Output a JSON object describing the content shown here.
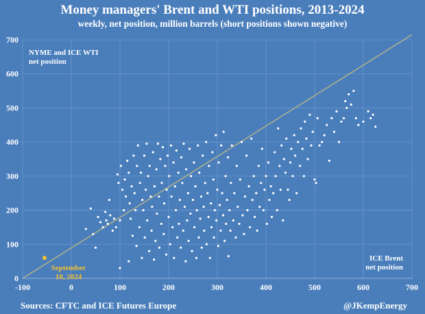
{
  "chart_data": {
    "type": "scatter",
    "title": "Money managers' Brent and WTI positions, 2013-2024",
    "subtitle": "weekly, net position, million barrels (short positions shown negative)",
    "xlabel": "ICE Brent net position",
    "ylabel": "NYME and ICE WTI net position",
    "xlim": [
      -100,
      700
    ],
    "ylim": [
      0,
      700
    ],
    "xticks": [
      -100,
      0,
      100,
      200,
      300,
      400,
      500,
      600,
      700
    ],
    "yticks": [
      0,
      100,
      200,
      300,
      400,
      500,
      600,
      700
    ],
    "grid": true,
    "trend_line": [
      [
        -100,
        0
      ],
      [
        700,
        715
      ]
    ],
    "highlight": {
      "label": "September 10, 2024",
      "x": -55,
      "y": 60,
      "color": "#f2c12e"
    },
    "point_color": "#ffffff",
    "points": [
      [
        30,
        145
      ],
      [
        40,
        205
      ],
      [
        45,
        130
      ],
      [
        50,
        90
      ],
      [
        55,
        180
      ],
      [
        60,
        165
      ],
      [
        65,
        150
      ],
      [
        70,
        195
      ],
      [
        72,
        170
      ],
      [
        75,
        160
      ],
      [
        78,
        230
      ],
      [
        80,
        185
      ],
      [
        85,
        140
      ],
      [
        88,
        175
      ],
      [
        92,
        150
      ],
      [
        95,
        305
      ],
      [
        97,
        280
      ],
      [
        100,
        30
      ],
      [
        100,
        170
      ],
      [
        102,
        330
      ],
      [
        105,
        260
      ],
      [
        108,
        200
      ],
      [
        110,
        290
      ],
      [
        112,
        240
      ],
      [
        115,
        345
      ],
      [
        118,
        50
      ],
      [
        118,
        310
      ],
      [
        120,
        220
      ],
      [
        122,
        175
      ],
      [
        124,
        270
      ],
      [
        126,
        125
      ],
      [
        128,
        360
      ],
      [
        130,
        250
      ],
      [
        132,
        200
      ],
      [
        134,
        95
      ],
      [
        135,
        330
      ],
      [
        137,
        390
      ],
      [
        140,
        150
      ],
      [
        141,
        280
      ],
      [
        143,
        310
      ],
      [
        145,
        60
      ],
      [
        146,
        230
      ],
      [
        148,
        200
      ],
      [
        150,
        360
      ],
      [
        151,
        120
      ],
      [
        153,
        260
      ],
      [
        155,
        395
      ],
      [
        156,
        170
      ],
      [
        158,
        300
      ],
      [
        160,
        80
      ],
      [
        161,
        330
      ],
      [
        163,
        240
      ],
      [
        165,
        140
      ],
      [
        166,
        210
      ],
      [
        168,
        370
      ],
      [
        170,
        55
      ],
      [
        171,
        270
      ],
      [
        173,
        110
      ],
      [
        175,
        320
      ],
      [
        176,
        190
      ],
      [
        178,
        395
      ],
      [
        180,
        240
      ],
      [
        181,
        90
      ],
      [
        183,
        350
      ],
      [
        185,
        160
      ],
      [
        186,
        280
      ],
      [
        188,
        385
      ],
      [
        190,
        130
      ],
      [
        191,
        220
      ],
      [
        193,
        330
      ],
      [
        195,
        70
      ],
      [
        196,
        260
      ],
      [
        198,
        360
      ],
      [
        200,
        180
      ],
      [
        201,
        300
      ],
      [
        203,
        100
      ],
      [
        205,
        390
      ],
      [
        206,
        240
      ],
      [
        208,
        150
      ],
      [
        210,
        340
      ],
      [
        211,
        60
      ],
      [
        213,
        270
      ],
      [
        215,
        200
      ],
      [
        216,
        375
      ],
      [
        218,
        120
      ],
      [
        220,
        310
      ],
      [
        221,
        160
      ],
      [
        223,
        230
      ],
      [
        225,
        90
      ],
      [
        226,
        355
      ],
      [
        228,
        280
      ],
      [
        230,
        140
      ],
      [
        231,
        395
      ],
      [
        233,
        210
      ],
      [
        235,
        50
      ],
      [
        236,
        320
      ],
      [
        238,
        170
      ],
      [
        240,
        250
      ],
      [
        241,
        110
      ],
      [
        243,
        380
      ],
      [
        245,
        190
      ],
      [
        246,
        300
      ],
      [
        248,
        80
      ],
      [
        250,
        230
      ],
      [
        252,
        340
      ],
      [
        253,
        150
      ],
      [
        255,
        270
      ],
      [
        257,
        60
      ],
      [
        258,
        200
      ],
      [
        260,
        390
      ],
      [
        262,
        120
      ],
      [
        263,
        310
      ],
      [
        265,
        175
      ],
      [
        267,
        240
      ],
      [
        268,
        90
      ],
      [
        270,
        360
      ],
      [
        272,
        210
      ],
      [
        273,
        140
      ],
      [
        275,
        280
      ],
      [
        277,
        400
      ],
      [
        278,
        100
      ],
      [
        280,
        250
      ],
      [
        282,
        180
      ],
      [
        283,
        330
      ],
      [
        285,
        60
      ],
      [
        287,
        220
      ],
      [
        288,
        150
      ],
      [
        290,
        370
      ],
      [
        292,
        290
      ],
      [
        293,
        120
      ],
      [
        295,
        200
      ],
      [
        297,
        420
      ],
      [
        298,
        170
      ],
      [
        300,
        260
      ],
      [
        302,
        95
      ],
      [
        303,
        340
      ],
      [
        305,
        215
      ],
      [
        307,
        140
      ],
      [
        308,
        390
      ],
      [
        310,
        250
      ],
      [
        312,
        185
      ],
      [
        313,
        430
      ],
      [
        315,
        110
      ],
      [
        317,
        300
      ],
      [
        318,
        160
      ],
      [
        320,
        230
      ],
      [
        322,
        355
      ],
      [
        323,
        65
      ],
      [
        325,
        200
      ],
      [
        327,
        140
      ],
      [
        328,
        280
      ],
      [
        330,
        390
      ],
      [
        333,
        170
      ],
      [
        335,
        250
      ],
      [
        338,
        120
      ],
      [
        340,
        330
      ],
      [
        342,
        210
      ],
      [
        345,
        160
      ],
      [
        347,
        290
      ],
      [
        350,
        400
      ],
      [
        352,
        185
      ],
      [
        355,
        130
      ],
      [
        357,
        240
      ],
      [
        360,
        360
      ],
      [
        362,
        200
      ],
      [
        365,
        270
      ],
      [
        367,
        150
      ],
      [
        370,
        410
      ],
      [
        372,
        230
      ],
      [
        375,
        300
      ],
      [
        377,
        180
      ],
      [
        380,
        250
      ],
      [
        382,
        140
      ],
      [
        385,
        330
      ],
      [
        387,
        210
      ],
      [
        390,
        280
      ],
      [
        392,
        380
      ],
      [
        395,
        200
      ],
      [
        397,
        260
      ],
      [
        400,
        300
      ],
      [
        402,
        160
      ],
      [
        405,
        340
      ],
      [
        407,
        230
      ],
      [
        410,
        270
      ],
      [
        412,
        180
      ],
      [
        415,
        250
      ],
      [
        418,
        370
      ],
      [
        420,
        300
      ],
      [
        423,
        200
      ],
      [
        425,
        440
      ],
      [
        428,
        330
      ],
      [
        430,
        260
      ],
      [
        432,
        390
      ],
      [
        435,
        170
      ],
      [
        437,
        350
      ],
      [
        440,
        310
      ],
      [
        442,
        410
      ],
      [
        445,
        260
      ],
      [
        448,
        230
      ],
      [
        450,
        340
      ],
      [
        452,
        380
      ],
      [
        455,
        300
      ],
      [
        458,
        420
      ],
      [
        460,
        360
      ],
      [
        463,
        250
      ],
      [
        466,
        400
      ],
      [
        470,
        330
      ],
      [
        472,
        440
      ],
      [
        475,
        380
      ],
      [
        478,
        300
      ],
      [
        480,
        460
      ],
      [
        483,
        410
      ],
      [
        486,
        350
      ],
      [
        490,
        480
      ],
      [
        493,
        390
      ],
      [
        496,
        430
      ],
      [
        500,
        290
      ],
      [
        503,
        280
      ],
      [
        506,
        470
      ],
      [
        510,
        390
      ],
      [
        515,
        400
      ],
      [
        520,
        420
      ],
      [
        525,
        450
      ],
      [
        530,
        345
      ],
      [
        535,
        470
      ],
      [
        540,
        430
      ],
      [
        545,
        490
      ],
      [
        550,
        400
      ],
      [
        555,
        460
      ],
      [
        560,
        470
      ],
      [
        563,
        520
      ],
      [
        566,
        500
      ],
      [
        570,
        540
      ],
      [
        575,
        510
      ],
      [
        580,
        550
      ],
      [
        585,
        470
      ],
      [
        590,
        450
      ],
      [
        600,
        460
      ],
      [
        610,
        490
      ],
      [
        615,
        470
      ],
      [
        620,
        480
      ],
      [
        625,
        445
      ]
    ]
  },
  "footer": {
    "source": "Sources: CFTC and ICE Futures Europe",
    "handle": "@JKempEnergy"
  }
}
